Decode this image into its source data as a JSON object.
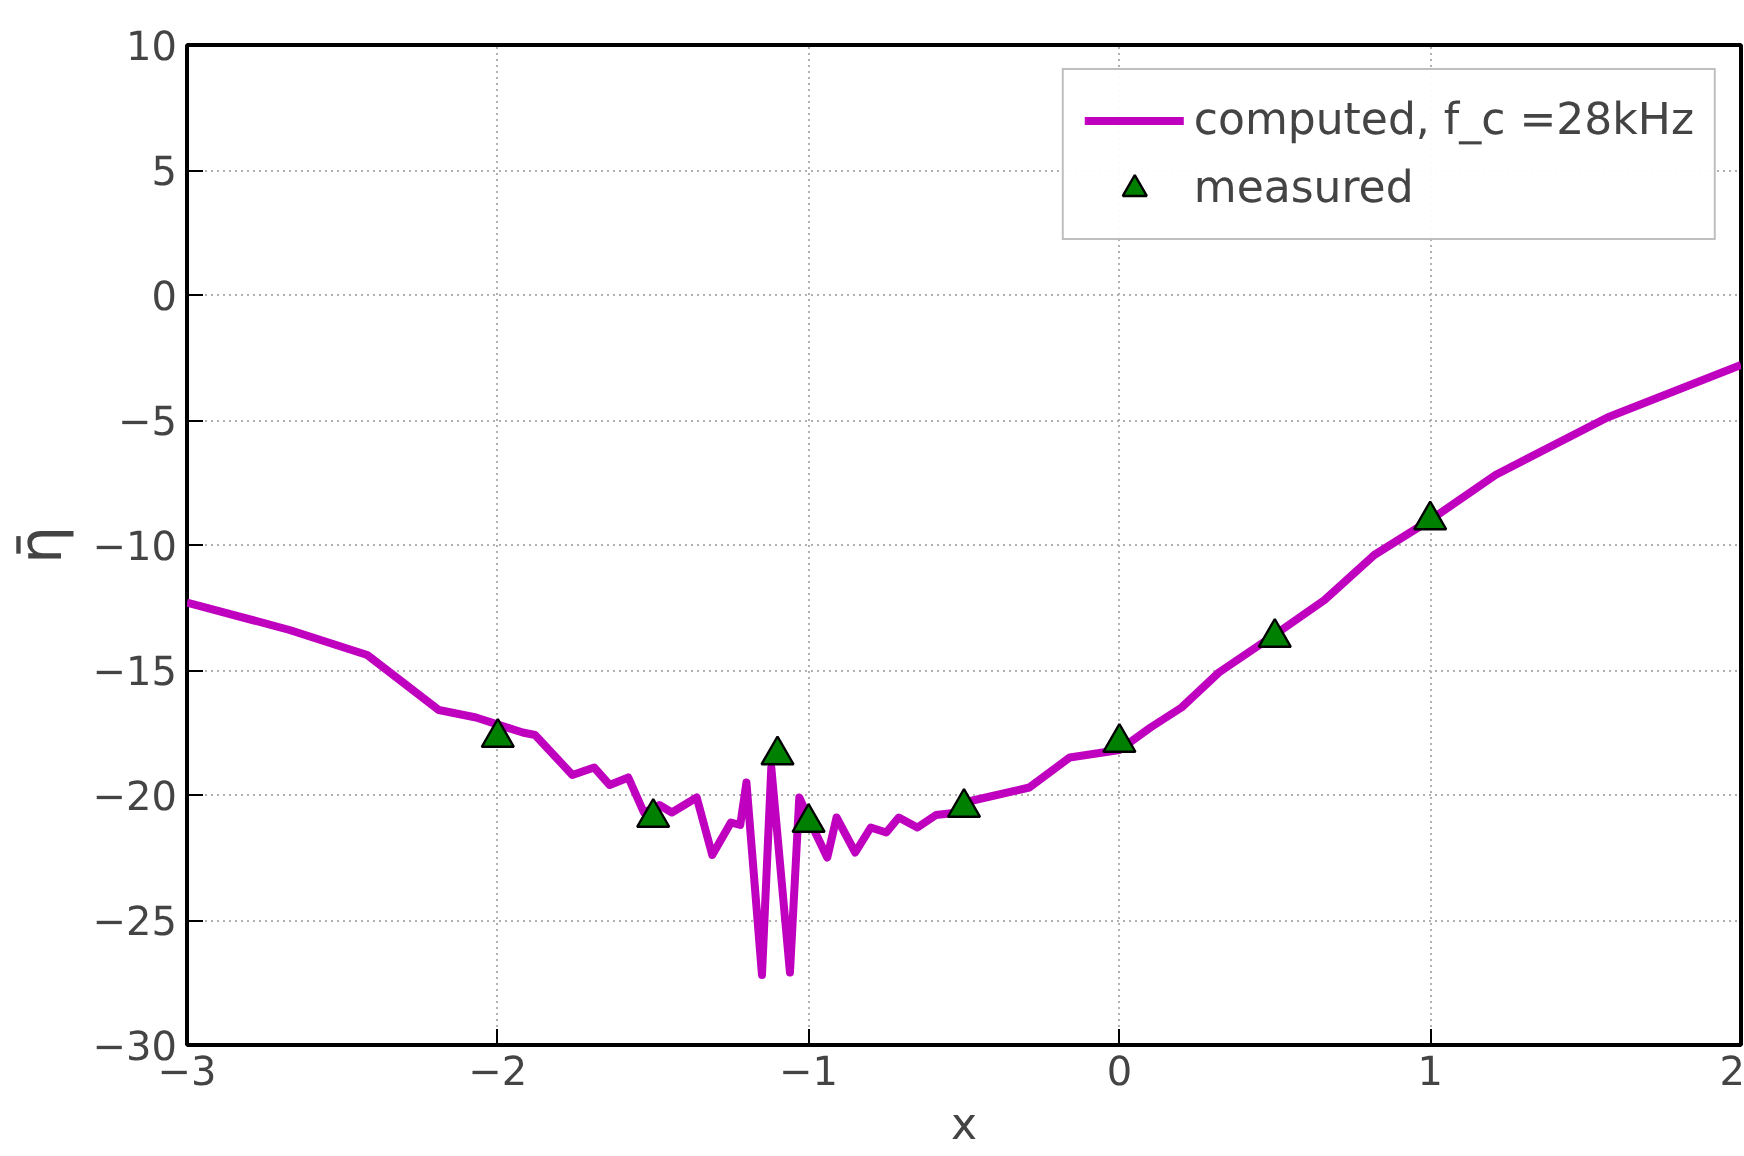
{
  "chart_data": {
    "type": "line",
    "xlabel": "x",
    "ylabel": "η̄",
    "xlim": [
      -3,
      2
    ],
    "ylim": [
      -30,
      10
    ],
    "xticks": [
      {
        "value": -3,
        "label": "−3"
      },
      {
        "value": -2,
        "label": "−2"
      },
      {
        "value": -1,
        "label": "−1"
      },
      0,
      1,
      2
    ],
    "yticks": [
      {
        "value": -30,
        "label": "−30"
      },
      {
        "value": -25,
        "label": "−25"
      },
      {
        "value": -20,
        "label": "−20"
      },
      {
        "value": -15,
        "label": "−15"
      },
      {
        "value": -10,
        "label": "−10"
      },
      {
        "value": -5,
        "label": "−5"
      },
      0,
      5,
      10
    ],
    "grid": true,
    "legend": "top right",
    "line_style": "solid",
    "series": [
      {
        "name": "computed, f_c =28kHz",
        "color": "#bf00bf",
        "marker": "none",
        "x": [
          -3,
          -2.67,
          -2.42,
          -2.19,
          -2.07,
          -1.92,
          -1.88,
          -1.76,
          -1.69,
          -1.64,
          -1.58,
          -1.53,
          -1.48,
          -1.44,
          -1.36,
          -1.31,
          -1.25,
          -1.22,
          -1.2,
          -1.15,
          -1.12,
          -1.06,
          -1.03,
          -0.99,
          -0.94,
          -0.91,
          -0.85,
          -0.8,
          -0.75,
          -0.71,
          -0.65,
          -0.59,
          -0.52,
          -0.5,
          -0.29,
          -0.16,
          0,
          0.1,
          0.2,
          0.32,
          0.51,
          0.66,
          0.82,
          1.0,
          1.21,
          1.57,
          2.0
        ],
        "values": [
          -12.3,
          -13.4,
          -14.4,
          -16.6,
          -16.9,
          -17.5,
          -17.6,
          -19.2,
          -18.9,
          -19.6,
          -19.3,
          -20.7,
          -20.4,
          -20.7,
          -20.1,
          -22.4,
          -21.1,
          -21.2,
          -19.5,
          -27.2,
          -18.9,
          -27.1,
          -20.1,
          -21.2,
          -22.5,
          -20.9,
          -22.3,
          -21.3,
          -21.5,
          -20.9,
          -21.3,
          -20.8,
          -20.7,
          -20.3,
          -19.7,
          -18.5,
          -18.2,
          -17.3,
          -16.5,
          -15.1,
          -13.5,
          -12.2,
          -10.4,
          -9.0,
          -7.2,
          -4.9,
          -2.8
        ]
      },
      {
        "name": "measured",
        "type": "scatter",
        "color": "#008000",
        "marker": "triangle",
        "x": [
          -2,
          -1.5,
          -1.1,
          -1,
          -0.5,
          0,
          0.5,
          1
        ],
        "values": [
          -17.7,
          -20.9,
          -18.4,
          -21.1,
          -20.5,
          -17.9,
          -13.7,
          -9.0
        ]
      }
    ]
  }
}
